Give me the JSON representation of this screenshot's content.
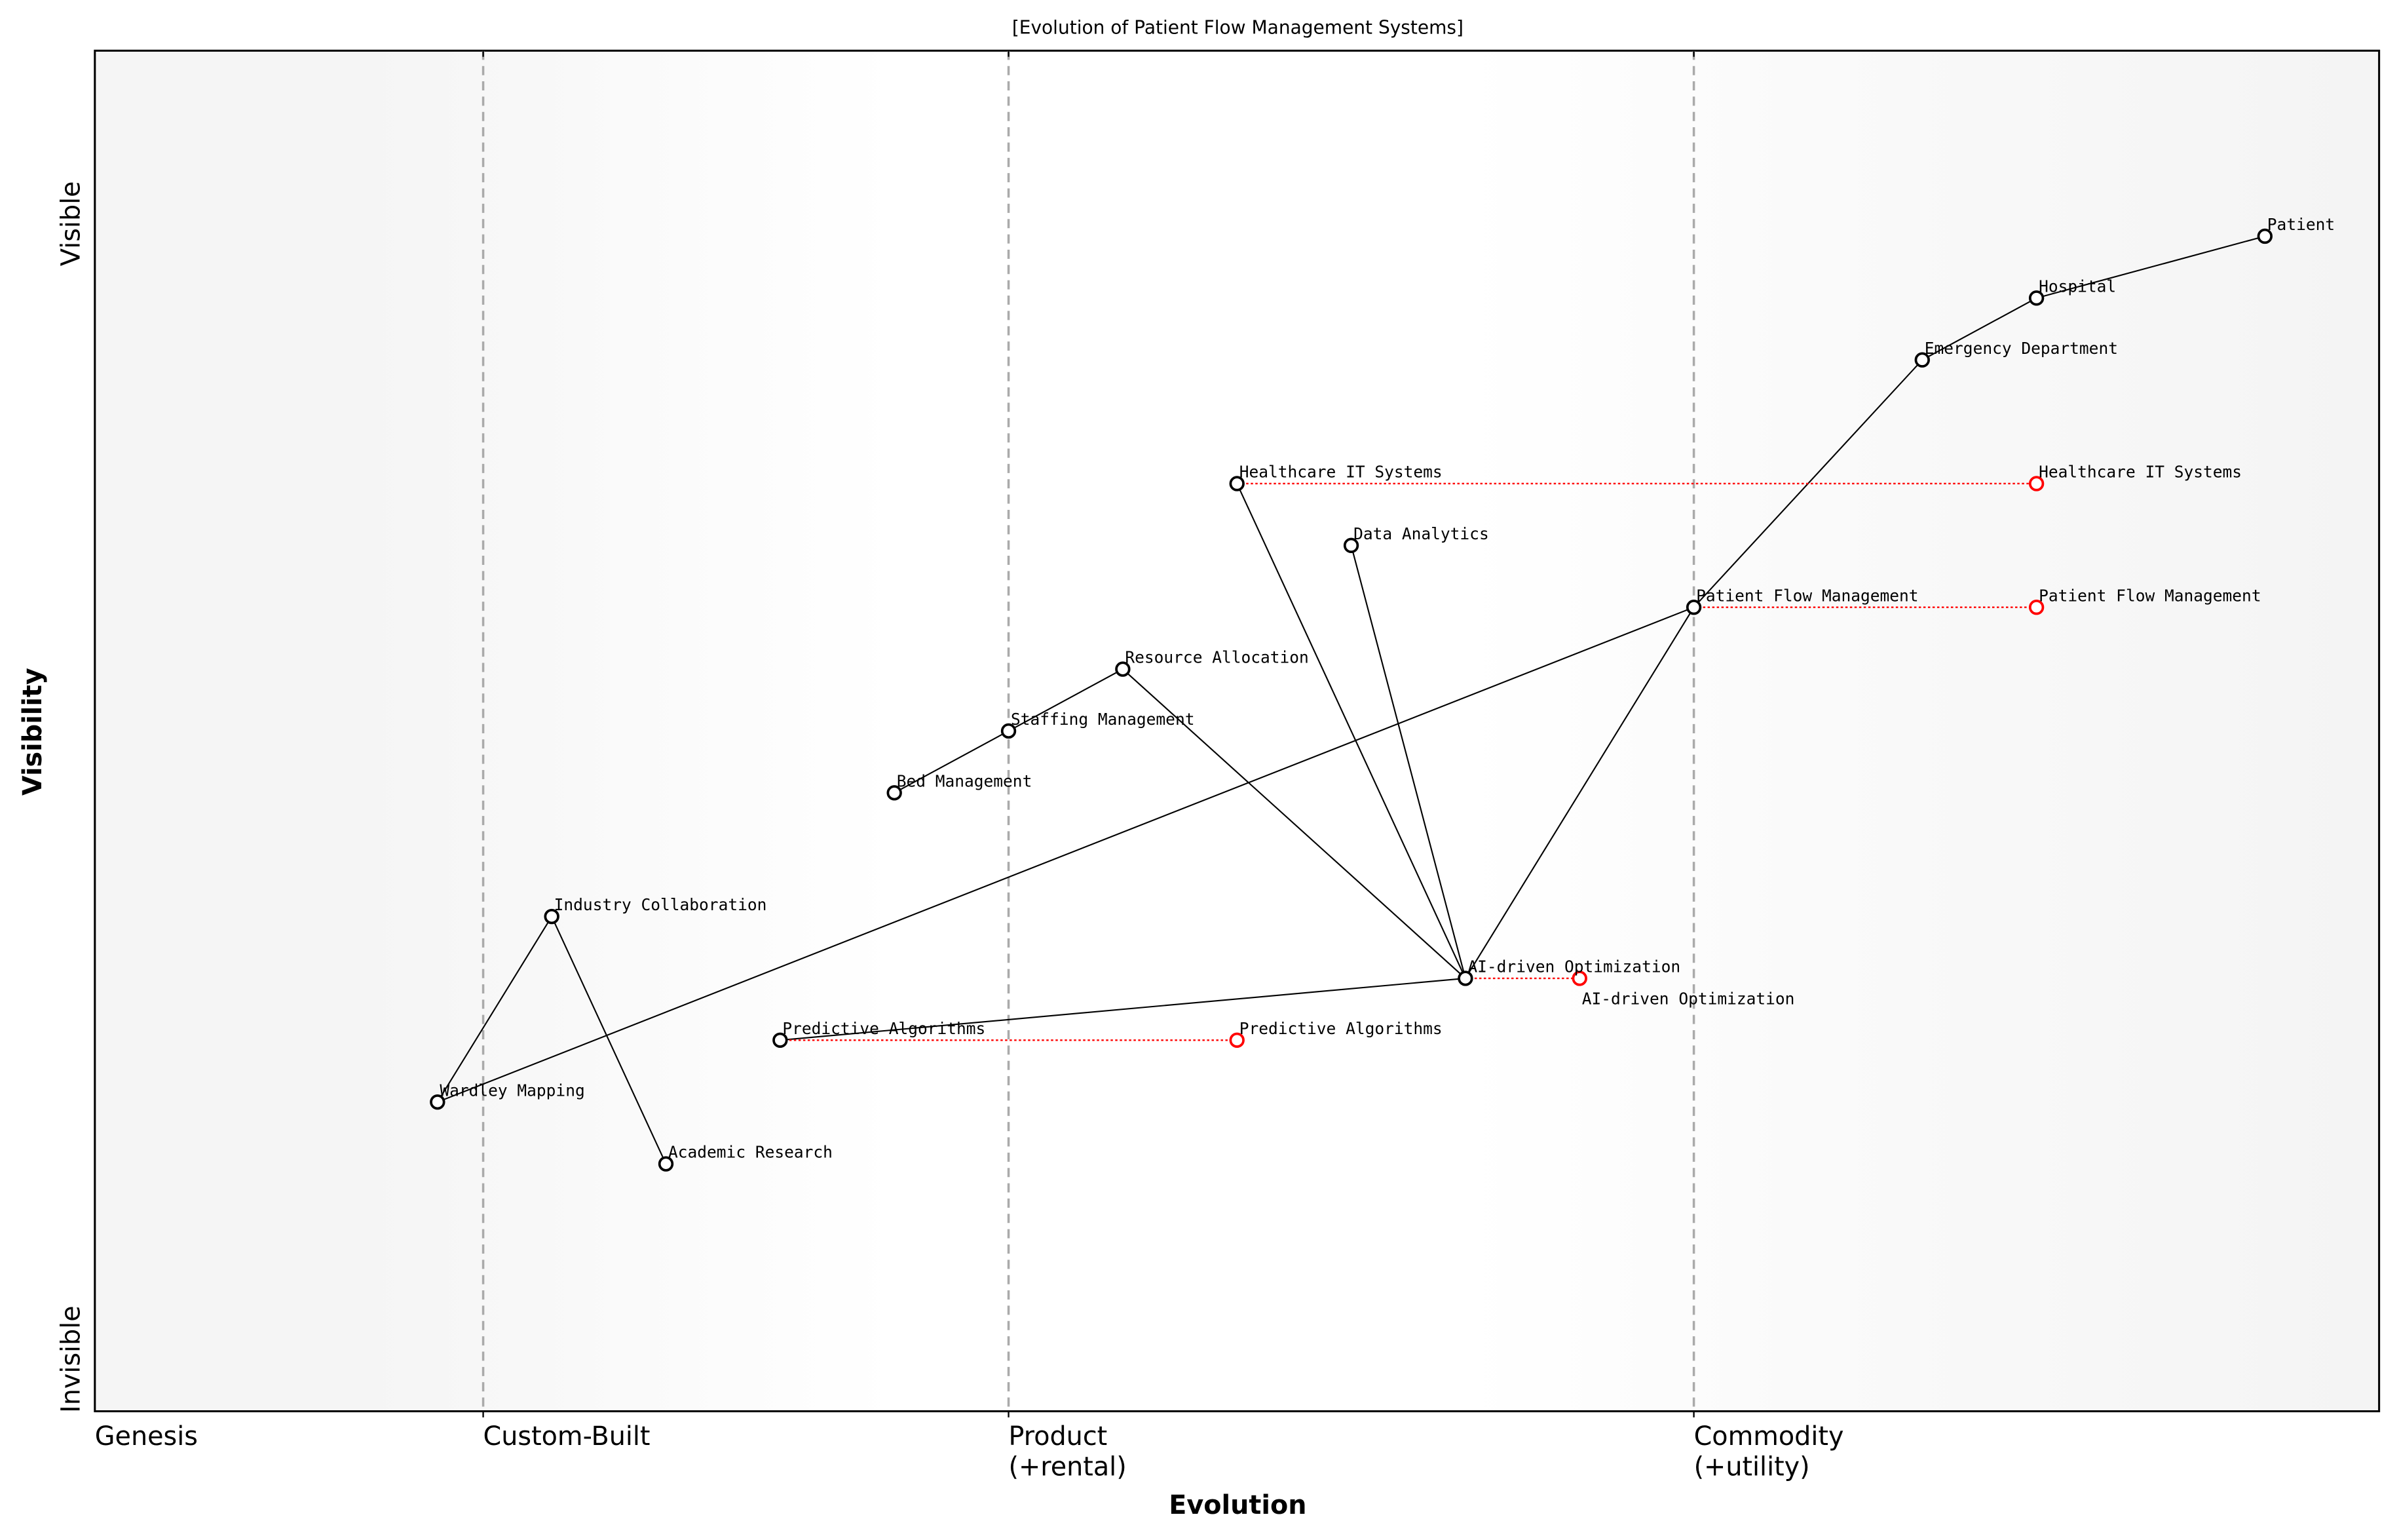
{
  "title": "[Evolution of Patient Flow Management Systems]",
  "chart_data": {
    "type": "wardley-map",
    "title": "[Evolution of Patient Flow Management Systems]",
    "xlabel": "Evolution",
    "ylabel": "Visibility",
    "xlim": [
      0,
      1
    ],
    "ylim": [
      0,
      1.1
    ],
    "x_stage_labels": [
      {
        "x": 0.0,
        "label": "Genesis"
      },
      {
        "x": 0.17,
        "label": "Custom-Built"
      },
      {
        "x": 0.4,
        "label": "Product\n(+rental)"
      },
      {
        "x": 0.7,
        "label": "Commodity\n(+utility)"
      }
    ],
    "y_labels": {
      "top": "Visible",
      "bottom": "Invisible"
    },
    "stage_dividers": [
      0.17,
      0.4,
      0.7
    ],
    "components": [
      {
        "name": "Patient",
        "x": 0.95,
        "y": 0.95
      },
      {
        "name": "Hospital",
        "x": 0.85,
        "y": 0.9
      },
      {
        "name": "Emergency Department",
        "x": 0.8,
        "y": 0.85
      },
      {
        "name": "Healthcare IT Systems",
        "x": 0.5,
        "y": 0.75
      },
      {
        "name": "Data Analytics",
        "x": 0.55,
        "y": 0.7
      },
      {
        "name": "Patient Flow Management",
        "x": 0.7,
        "y": 0.65
      },
      {
        "name": "Resource Allocation",
        "x": 0.45,
        "y": 0.6
      },
      {
        "name": "Staffing Management",
        "x": 0.4,
        "y": 0.55
      },
      {
        "name": "Bed Management",
        "x": 0.35,
        "y": 0.5
      },
      {
        "name": "Industry Collaboration",
        "x": 0.2,
        "y": 0.4
      },
      {
        "name": "AI-driven Optimization",
        "x": 0.6,
        "y": 0.35
      },
      {
        "name": "Predictive Algorithms",
        "x": 0.3,
        "y": 0.3
      },
      {
        "name": "Wardley Mapping",
        "x": 0.15,
        "y": 0.25
      },
      {
        "name": "Academic Research",
        "x": 0.25,
        "y": 0.2
      }
    ],
    "links": [
      [
        "Patient",
        "Hospital"
      ],
      [
        "Hospital",
        "Emergency Department"
      ],
      [
        "Emergency Department",
        "Patient Flow Management"
      ],
      [
        "Patient Flow Management",
        "Wardley Mapping"
      ],
      [
        "Patient Flow Management",
        "AI-driven Optimization"
      ],
      [
        "Healthcare IT Systems",
        "AI-driven Optimization"
      ],
      [
        "Data Analytics",
        "AI-driven Optimization"
      ],
      [
        "Resource Allocation",
        "AI-driven Optimization"
      ],
      [
        "Resource Allocation",
        "Staffing Management"
      ],
      [
        "Staffing Management",
        "Bed Management"
      ],
      [
        "AI-driven Optimization",
        "Predictive Algorithms"
      ],
      [
        "Wardley Mapping",
        "Industry Collaboration"
      ],
      [
        "Industry Collaboration",
        "Academic Research"
      ]
    ],
    "evolutions": [
      {
        "name": "Healthcare IT Systems",
        "to_x": 0.85
      },
      {
        "name": "Patient Flow Management",
        "to_x": 0.85
      },
      {
        "name": "AI-driven Optimization",
        "to_x": 0.65
      },
      {
        "name": "Predictive Algorithms",
        "to_x": 0.5
      }
    ],
    "colors": {
      "component": "#000000",
      "evolved": "#ff0000",
      "divider": "#aaaaaa",
      "background_edge": "#f4f4f4",
      "background_mid": "#ffffff"
    }
  }
}
